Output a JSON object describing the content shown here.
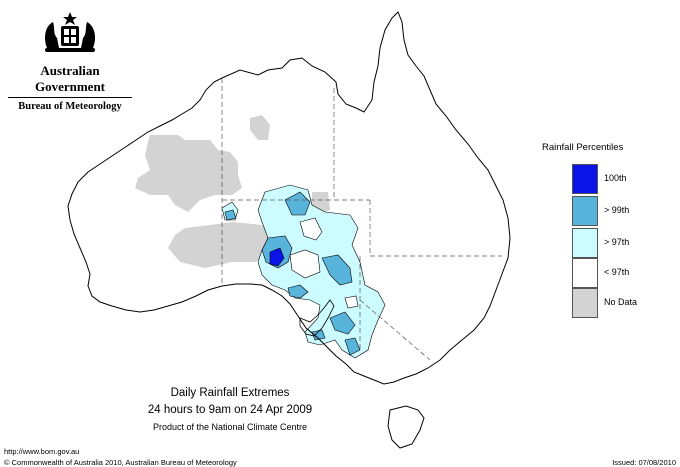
{
  "header": {
    "government": "Australian Government",
    "bureau": "Bureau of Meteorology"
  },
  "legend": {
    "title": "Rainfall Percentiles",
    "items": [
      {
        "label": "100th",
        "color": "#0a14e6"
      },
      {
        "label": "> 99th",
        "color": "#59b4dc"
      },
      {
        "label": "> 97th",
        "color": "#ccfcff"
      },
      {
        "label": "< 97th",
        "color": "#ffffff"
      },
      {
        "label": "No Data",
        "color": "#d3d3d3"
      }
    ]
  },
  "map_title": {
    "line1": "Daily Rainfall Extremes",
    "line2": "24 hours to 9am on 24 Apr 2009",
    "line3": "Product of the National Climate Centre"
  },
  "footer": {
    "url": "http://www.bom.gov.au",
    "copyright": "© Commonwealth of Australia 2010, Australian Bureau of Meteorology",
    "issued": "Issued: 07/08/2010"
  }
}
